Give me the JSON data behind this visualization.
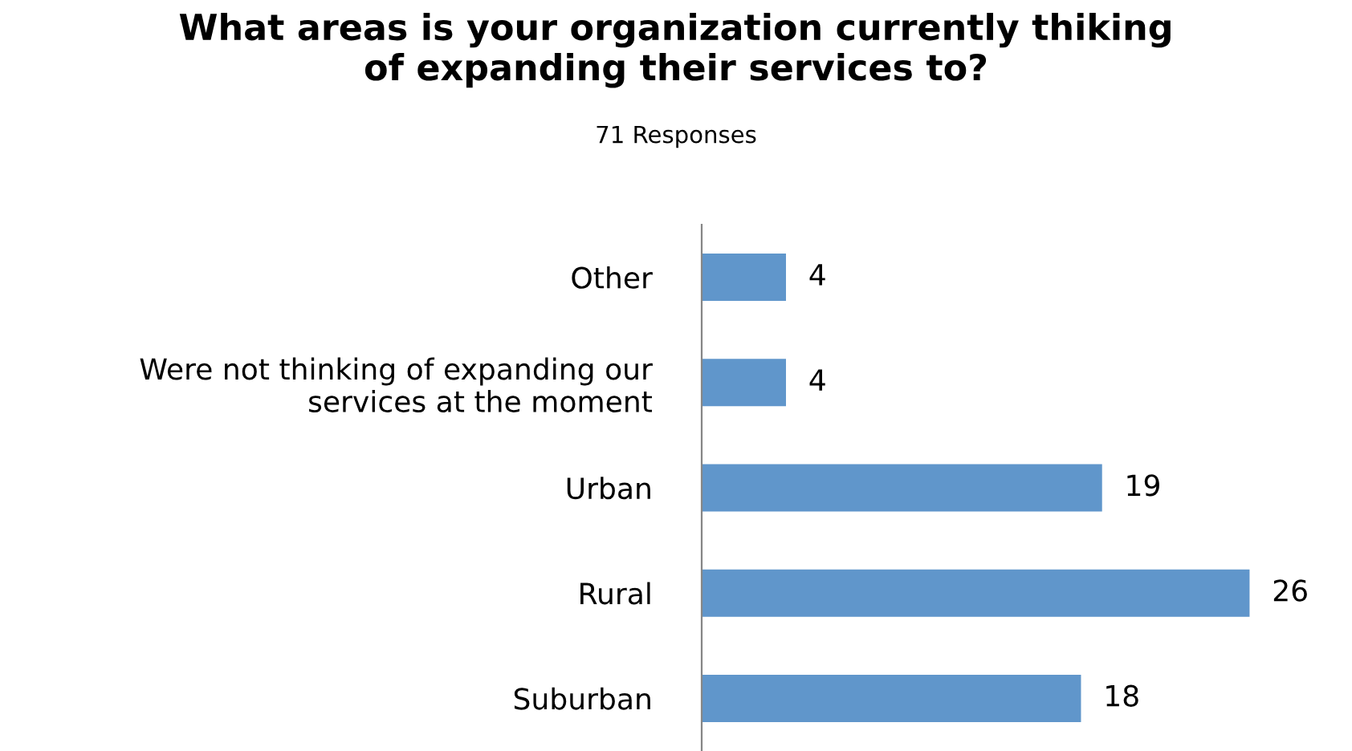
{
  "chart_data": {
    "type": "bar",
    "orientation": "horizontal",
    "title": "What areas is your organization currently thiking\nof expanding their services to?",
    "subtitle": "71 Responses",
    "categories": [
      "Other",
      "Were not thinking of expanding our\nservices at the moment",
      "Urban",
      "Rural",
      "Suburban"
    ],
    "values": [
      4,
      4,
      19,
      26,
      18
    ],
    "color": "#6096cb",
    "data_labels": true
  }
}
